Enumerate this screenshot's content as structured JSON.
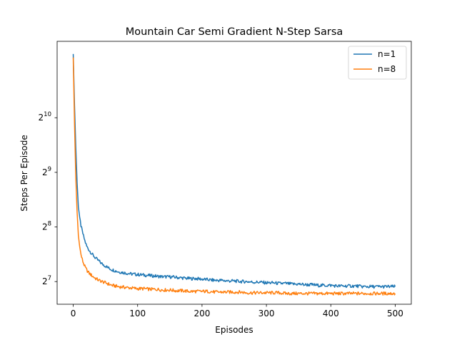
{
  "chart_data": {
    "type": "line",
    "title": "Mountain Car Semi Gradient N-Step Sarsa",
    "xlabel": "Episodes",
    "ylabel": "Steps Per Episode",
    "xlim": [
      -25,
      525
    ],
    "ylim": [
      96,
      2700
    ],
    "yscale": "log2",
    "x_ticks": [
      0,
      100,
      200,
      300,
      400,
      500
    ],
    "x_tick_labels": [
      "0",
      "100",
      "200",
      "300",
      "400",
      "500"
    ],
    "y_ticks": [
      128,
      256,
      512,
      1024
    ],
    "y_tick_labels": [
      {
        "base": "2",
        "exp": "7"
      },
      {
        "base": "2",
        "exp": "8"
      },
      {
        "base": "2",
        "exp": "9"
      },
      {
        "base": "2",
        "exp": "10"
      }
    ],
    "grid": false,
    "legend_position": "top-right",
    "series": [
      {
        "name": "n=1",
        "color": "#1f77b4",
        "x": [
          0,
          2,
          4,
          6,
          8,
          10,
          12,
          15,
          18,
          21,
          25,
          30,
          35,
          40,
          45,
          50,
          55,
          60,
          70,
          80,
          90,
          100,
          110,
          120,
          130,
          140,
          150,
          160,
          170,
          180,
          190,
          200,
          210,
          220,
          230,
          240,
          250,
          260,
          270,
          280,
          290,
          300,
          310,
          320,
          330,
          340,
          350,
          360,
          370,
          380,
          390,
          400,
          410,
          420,
          430,
          440,
          450,
          460,
          470,
          480,
          490,
          500
        ],
        "y": [
          2300,
          1200,
          700,
          450,
          330,
          290,
          260,
          235,
          215,
          200,
          190,
          180,
          172,
          166,
          160,
          156,
          152,
          149,
          145,
          143,
          141,
          140,
          139,
          138,
          137,
          136,
          136,
          135,
          134,
          133,
          133,
          132,
          131,
          130,
          130,
          129,
          129,
          128,
          128,
          127,
          127,
          126,
          126,
          125,
          125,
          124,
          124,
          123,
          123,
          122,
          122,
          122,
          121,
          121,
          121,
          121,
          120,
          120,
          120,
          120,
          120,
          120
        ]
      },
      {
        "name": "n=8",
        "color": "#ff7f0e",
        "x": [
          0,
          2,
          4,
          6,
          8,
          10,
          12,
          15,
          18,
          21,
          25,
          30,
          35,
          40,
          45,
          50,
          55,
          60,
          70,
          80,
          90,
          100,
          110,
          120,
          130,
          140,
          150,
          160,
          170,
          180,
          190,
          200,
          210,
          220,
          230,
          240,
          250,
          260,
          270,
          280,
          290,
          300,
          310,
          320,
          330,
          340,
          350,
          360,
          370,
          380,
          390,
          400,
          410,
          420,
          430,
          440,
          450,
          460,
          470,
          480,
          490,
          500
        ],
        "y": [
          2200,
          950,
          480,
          310,
          230,
          200,
          180,
          165,
          155,
          148,
          142,
          137,
          133,
          130,
          128,
          126,
          124,
          122,
          120,
          119,
          118,
          117,
          117,
          116,
          116,
          115,
          115,
          114,
          114,
          113,
          113,
          113,
          113,
          112,
          112,
          112,
          112,
          112,
          111,
          111,
          111,
          111,
          111,
          111,
          110,
          110,
          110,
          110,
          110,
          110,
          110,
          110,
          110,
          110,
          110,
          110,
          110,
          110,
          110,
          110,
          110,
          110
        ]
      }
    ]
  }
}
